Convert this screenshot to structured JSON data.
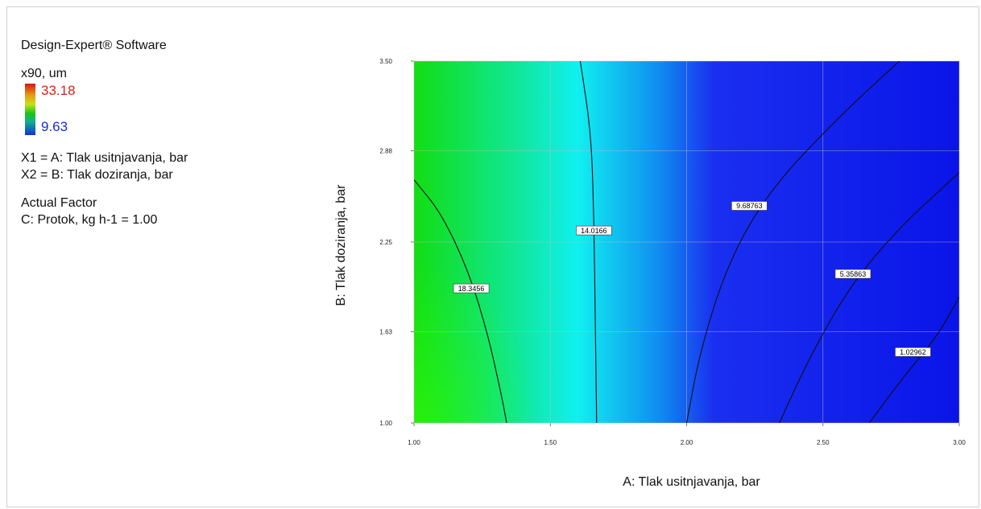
{
  "header": {
    "software": "Design-Expert® Software"
  },
  "legend": {
    "response": "x90, um",
    "max": "33.18",
    "min": "9.63",
    "x1": "X1 = A: Tlak usitnjavanja, bar",
    "x2": "X2 = B: Tlak doziranja, bar",
    "actual_factor_title": "Actual Factor",
    "actual_factor": "C: Protok, kg h-1 = 1.00"
  },
  "colors": {
    "max_label": "#e0201a",
    "min_label": "#1a2cd0",
    "contour_line": "#111111",
    "grid": "#bfbfbf"
  },
  "chart_data": {
    "type": "heatmap",
    "subtype": "contour",
    "xlabel": "A: Tlak usitnjavanja, bar",
    "ylabel": "B: Tlak doziranja, bar",
    "xlim": [
      1.0,
      3.0
    ],
    "ylim": [
      1.0,
      3.5
    ],
    "x_ticks": [
      "1.00",
      "1.50",
      "2.00",
      "2.50",
      "3.00"
    ],
    "y_ticks": [
      "1.00",
      "1.63",
      "2.25",
      "2.88",
      "3.50"
    ],
    "grid": true,
    "colorscale": [
      "#12dd12",
      "#10e8a0",
      "#10f0f0",
      "#108cf0",
      "#1a2ff0",
      "#0a14e8"
    ],
    "contours": [
      {
        "label": "18.3456",
        "label_at": [
          1.21,
          1.93
        ],
        "points": [
          [
            1.0,
            2.68
          ],
          [
            1.1,
            2.45
          ],
          [
            1.2,
            2.05
          ],
          [
            1.27,
            1.62
          ],
          [
            1.32,
            1.2
          ],
          [
            1.34,
            1.0
          ]
        ]
      },
      {
        "label": "14.0166",
        "label_at": [
          1.66,
          2.33
        ],
        "points": [
          [
            1.61,
            3.5
          ],
          [
            1.65,
            3.0
          ],
          [
            1.66,
            2.4
          ],
          [
            1.665,
            1.7
          ],
          [
            1.67,
            1.0
          ]
        ]
      },
      {
        "label": "9.68763",
        "label_at": [
          2.23,
          2.5
        ],
        "points": [
          [
            2.0,
            1.0
          ],
          [
            2.05,
            1.5
          ],
          [
            2.15,
            2.1
          ],
          [
            2.3,
            2.6
          ],
          [
            2.55,
            3.1
          ],
          [
            2.78,
            3.5
          ]
        ]
      },
      {
        "label": "5.35863",
        "label_at": [
          2.61,
          2.03
        ],
        "points": [
          [
            2.34,
            1.0
          ],
          [
            2.45,
            1.45
          ],
          [
            2.6,
            1.95
          ],
          [
            2.78,
            2.35
          ],
          [
            3.0,
            2.73
          ]
        ]
      },
      {
        "label": "1.02962",
        "label_at": [
          2.83,
          1.49
        ],
        "points": [
          [
            2.67,
            1.0
          ],
          [
            2.8,
            1.33
          ],
          [
            2.92,
            1.6
          ],
          [
            3.0,
            1.87
          ]
        ]
      }
    ]
  }
}
